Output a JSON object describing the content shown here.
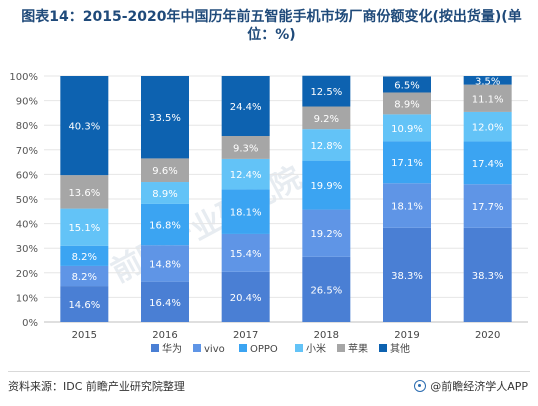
{
  "title": "图表14：2015-2020年中国历年前五智能手机市场厂商份额变化(按出货量)(单位：%)",
  "source": "资料来源：IDC 前瞻产业研究院整理",
  "brand": "@前瞻经济学人APP",
  "watermark": "前瞻产业研究院",
  "icon": "brand-logo-icon",
  "chart_data": {
    "type": "bar",
    "stacked": true,
    "categories": [
      "2015",
      "2016",
      "2017",
      "2018",
      "2019",
      "2020"
    ],
    "ylim": [
      0,
      100
    ],
    "yticks": [
      "0%",
      "10%",
      "20%",
      "30%",
      "40%",
      "50%",
      "60%",
      "70%",
      "80%",
      "90%",
      "100%"
    ],
    "legend_position": "bottom",
    "series": [
      {
        "name": "华为",
        "color": "#4a7fd4",
        "values": [
          14.6,
          16.4,
          20.4,
          26.5,
          38.3,
          38.3
        ],
        "labels": [
          "14.6%",
          "16.4%",
          "20.4%",
          "26.5%",
          "38.3%",
          "38.3%"
        ]
      },
      {
        "name": "vivo",
        "color": "#5f95e6",
        "values": [
          8.2,
          14.8,
          15.4,
          19.2,
          18.1,
          17.7
        ],
        "labels": [
          "8.2%",
          "14.8%",
          "15.4%",
          "19.2%",
          "18.1%",
          "17.7%"
        ]
      },
      {
        "name": "OPPO",
        "color": "#3ba4f2",
        "values": [
          8.2,
          16.8,
          18.1,
          19.9,
          17.1,
          17.4
        ],
        "labels": [
          "8.2%",
          "16.8%",
          "18.1%",
          "19.9%",
          "17.1%",
          "17.4%"
        ]
      },
      {
        "name": "小米",
        "color": "#63c3f7",
        "values": [
          15.1,
          8.9,
          12.4,
          12.8,
          10.9,
          12.0
        ],
        "labels": [
          "15.1%",
          "8.9%",
          "12.4%",
          "12.8%",
          "10.9%",
          "12.0%"
        ]
      },
      {
        "name": "苹果",
        "color": "#a6a6a6",
        "values": [
          13.6,
          9.6,
          9.3,
          9.2,
          8.9,
          11.1
        ],
        "labels": [
          "13.6%",
          "9.6%",
          "9.3%",
          "9.2%",
          "8.9%",
          "11.1%"
        ]
      },
      {
        "name": "其他",
        "color": "#0d62b0",
        "values": [
          40.3,
          33.5,
          24.4,
          12.5,
          6.5,
          3.5
        ],
        "labels": [
          "40.3%",
          "33.5%",
          "24.4%",
          "12.5%",
          "6.5%",
          "3.5%"
        ]
      }
    ]
  }
}
